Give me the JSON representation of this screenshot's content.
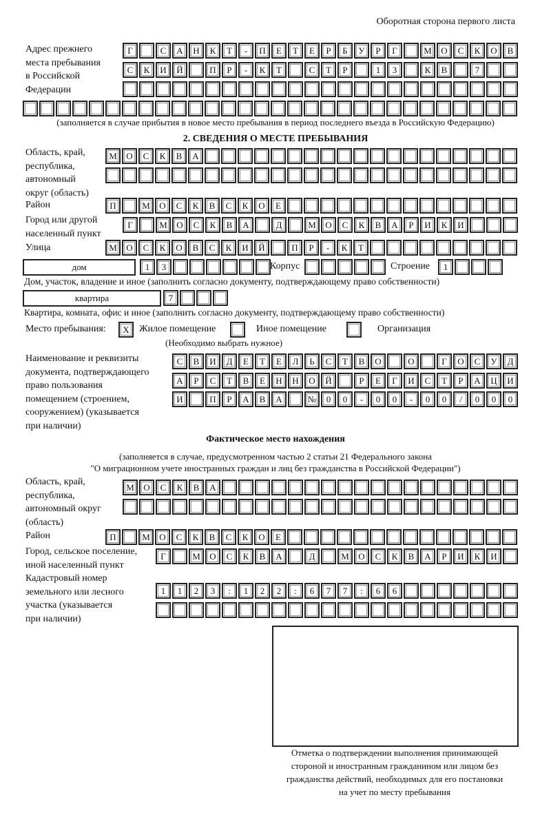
{
  "header": {
    "page_side": "Оборотная сторона первого листа"
  },
  "prev_address": {
    "label": "Адрес прежнего\nместа пребывания\nв Российской\nФедерации",
    "rows": [
      "Г САНКТ-ПЕТЕРБУРГ МОСКОВ",
      "СКИЙ ПР-КТ СТР 13 КВ 7  ",
      "                        ",
      "                              "
    ],
    "note": "(заполняется в случае прибытия в новое место пребывания в период последнего въезда в Российскую Федерацию)"
  },
  "section2": {
    "title": "2. СВЕДЕНИЯ О МЕСТЕ ПРЕБЫВАНИЯ",
    "region_label": "Область, край,\nреспублика,\nавтономный\nокруг (область)",
    "region_rows": [
      "МОСКВА                   ",
      "                         "
    ],
    "district_label": "Район",
    "district_row": "П МОСКВСКОЕ              ",
    "city_label": "Город или другой\nнаселенный пункт",
    "city_row": "Г МОСКВА Д МОСКВАРИКИ   ",
    "street_label": "Улица",
    "street_row": "МОСКОВСКИЙ ПР-КТ         ",
    "house_type": "дом",
    "house_row": "13      ",
    "korpus_label": "Корпус",
    "korpus_row": "     ",
    "building_label": "Строение",
    "building_row": "1   ",
    "house_note": "Дом, участок, владение и иное (заполнить согласно документу, подтверждающему право собственности)",
    "flat_type": "квартира",
    "flat_row": "7   ",
    "flat_note": "Квартира, комната, офис и иное (заполнить согласно документу, подтверждающему право собственности)",
    "stay_label": "Место пребывания:",
    "stay_options": [
      {
        "mark": "X",
        "label": "Жилое помещение"
      },
      {
        "mark": "",
        "label": "Иное помещение"
      },
      {
        "mark": "",
        "label": "Организация"
      }
    ],
    "stay_note": "(Необходимо выбрать нужное)",
    "doc_label": "Наименование и реквизиты\nдокумента, подтверждающего\nправо пользования\nпомещением (строением,\nсооружением) (указывается\nпри наличии)",
    "doc_rows": [
      "СВИДЕТЕЛЬСТВО О ГОСУД",
      "АРСТВЕННОЙ РЕГИСТРАЦИ",
      "И ПРАВА №00-00-00/000"
    ]
  },
  "actual": {
    "title": "Фактическое место нахождения",
    "note_line1": "(заполняется в случае, предусмотренном частью 2 статьи 21 Федерального закона",
    "note_line2": "\"О миграционном учете иностранных граждан и лиц без гражданства в Российской Федерации\")",
    "region_label": "Область, край,\nреспублика,\nавтономный округ\n(область)",
    "region_rows": [
      "МОСКВА                  ",
      "                        "
    ],
    "district_label": "Район",
    "district_row": "П МОСКВСКОЕ              ",
    "city_label": "Город, сельское поселение,\nиной населенный пункт",
    "city_row": "Г МОСКВА Д МОСКВАРИКИ ",
    "cadastre_label": "Кадастровый номер\nземельного или лесного\nучастка (указывается\nпри наличии)",
    "cadastre_rows": [
      "1123:122:677:66       ",
      "                      "
    ],
    "stamp_caption": "Отметка о подтверждении выполнения принимающей\nстороной и иностранным гражданином или лицом без\nгражданства действий, необходимых для его постановки\nна учет по месту пребывания"
  }
}
